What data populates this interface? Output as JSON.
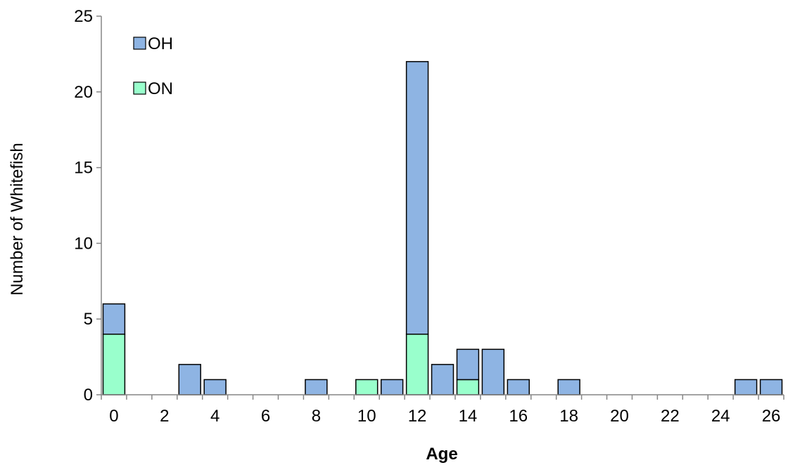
{
  "chart_data": {
    "type": "bar",
    "stacked": true,
    "xlabel": "Age",
    "ylabel": "Number of Whitefish",
    "ylim": [
      0,
      25
    ],
    "yticks": [
      "0",
      "5",
      "10",
      "15",
      "20",
      "25"
    ],
    "xticks": [
      "0",
      "2",
      "4",
      "6",
      "8",
      "10",
      "12",
      "14",
      "16",
      "18",
      "20",
      "22",
      "24",
      "26"
    ],
    "categories": [
      0,
      1,
      2,
      3,
      4,
      5,
      6,
      7,
      8,
      9,
      10,
      11,
      12,
      13,
      14,
      15,
      16,
      17,
      18,
      19,
      20,
      21,
      22,
      23,
      24,
      25,
      26
    ],
    "series": [
      {
        "name": "ON",
        "color": "#99ffcc",
        "values": [
          4,
          0,
          0,
          0,
          0,
          0,
          0,
          0,
          0,
          0,
          1,
          0,
          4,
          0,
          1,
          0,
          0,
          0,
          0,
          0,
          0,
          0,
          0,
          0,
          0,
          0,
          0
        ]
      },
      {
        "name": "OH",
        "color": "#8eb4e3",
        "values": [
          2,
          0,
          0,
          2,
          1,
          0,
          0,
          0,
          1,
          0,
          0,
          1,
          18,
          2,
          2,
          3,
          1,
          0,
          1,
          0,
          0,
          0,
          0,
          0,
          0,
          1,
          1
        ]
      }
    ],
    "legend": {
      "position": "top-left",
      "order": [
        "OH",
        "ON"
      ]
    },
    "grid": false
  }
}
